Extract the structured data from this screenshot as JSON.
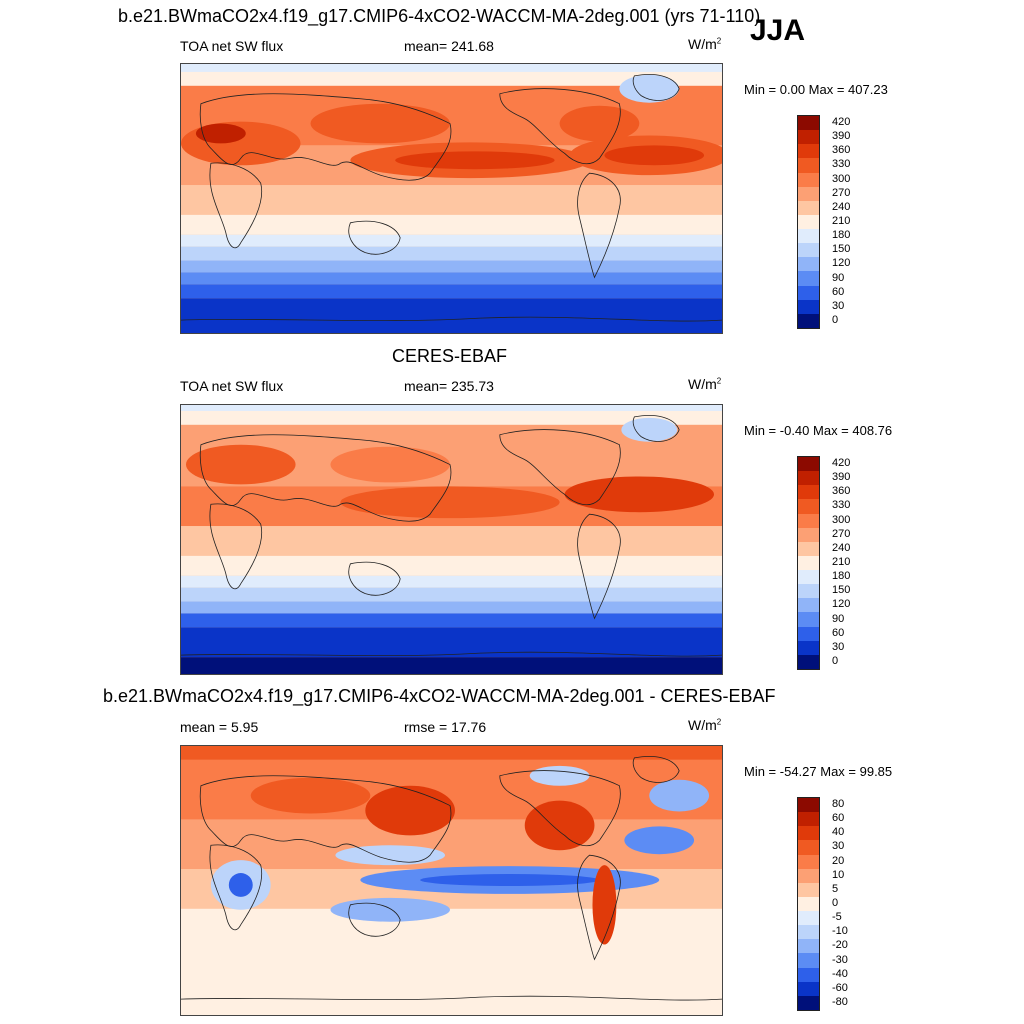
{
  "season": "JJA",
  "panels": [
    {
      "title": "b.e21.BWmaCO2x4.f19_g17.CMIP6-4xCO2-WACCM-MA-2deg.001 (yrs 71-110)",
      "left_label": "TOA net SW flux",
      "center_label": "mean= 241.68",
      "units": "W/m",
      "units_sup": "2",
      "minmax": "Min =   0.00 Max = 407.23",
      "colorbar_labels": [
        "420",
        "390",
        "360",
        "330",
        "300",
        "270",
        "240",
        "210",
        "180",
        "150",
        "120",
        "90",
        "60",
        "30",
        "0"
      ],
      "colorbar_colors": [
        "#8c0a00",
        "#c02000",
        "#e03a0a",
        "#f05a22",
        "#fa7c48",
        "#fca074",
        "#fec6a2",
        "#fff0e2",
        "#e0ecfc",
        "#bcd4fa",
        "#90b4f8",
        "#5c8cf4",
        "#2e60ea",
        "#0a34c8",
        "#00107a"
      ]
    },
    {
      "title": "CERES-EBAF",
      "left_label": "TOA net SW flux",
      "center_label": "mean= 235.73",
      "units": "W/m",
      "units_sup": "2",
      "minmax": "Min =  -0.40 Max = 408.76",
      "colorbar_labels": [
        "420",
        "390",
        "360",
        "330",
        "300",
        "270",
        "240",
        "210",
        "180",
        "150",
        "120",
        "90",
        "60",
        "30",
        "0"
      ],
      "colorbar_colors": [
        "#8c0a00",
        "#c02000",
        "#e03a0a",
        "#f05a22",
        "#fa7c48",
        "#fca074",
        "#fec6a2",
        "#fff0e2",
        "#e0ecfc",
        "#bcd4fa",
        "#90b4f8",
        "#5c8cf4",
        "#2e60ea",
        "#0a34c8",
        "#00107a"
      ]
    },
    {
      "title": "b.e21.BWmaCO2x4.f19_g17.CMIP6-4xCO2-WACCM-MA-2deg.001 - CERES-EBAF",
      "left_label": "mean =   5.95",
      "center_label": "rmse =  17.76",
      "units": "W/m",
      "units_sup": "2",
      "minmax": "Min = -54.27 Max =  99.85",
      "colorbar_labels": [
        "80",
        "60",
        "40",
        "30",
        "20",
        "10",
        "5",
        "0",
        "-5",
        "-10",
        "-20",
        "-30",
        "-40",
        "-60",
        "-80"
      ],
      "colorbar_colors": [
        "#8c0a00",
        "#c02000",
        "#e03a0a",
        "#f05a22",
        "#fa7c48",
        "#fca074",
        "#fec6a2",
        "#fff0e2",
        "#e0ecfc",
        "#bcd4fa",
        "#90b4f8",
        "#5c8cf4",
        "#2e60ea",
        "#0a34c8",
        "#00107a"
      ]
    }
  ]
}
